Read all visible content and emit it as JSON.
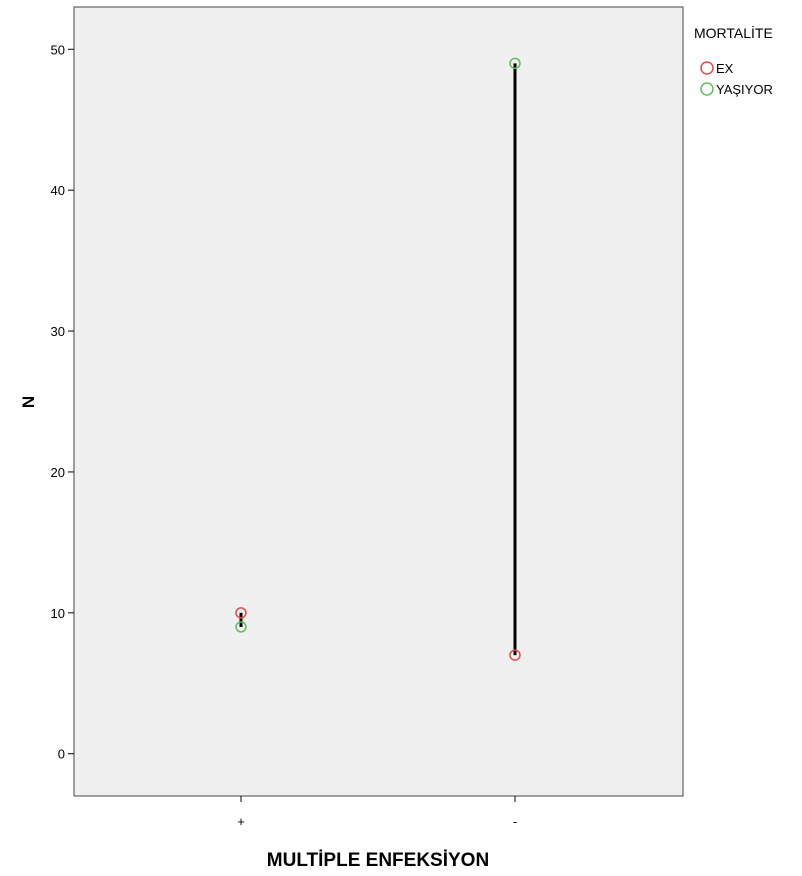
{
  "chart_data": {
    "type": "scatter",
    "xlabel": "MULTİPLE ENFEKSİYON",
    "ylabel": "N",
    "categories": [
      "+",
      "-"
    ],
    "ylim": [
      -3,
      53
    ],
    "yticks": [
      0,
      10,
      20,
      30,
      40,
      50
    ],
    "grid": false,
    "legend_title": "MORTALİTE",
    "legend_position": "top-right, outside plot",
    "plot_background": "#f0f0f0",
    "series": [
      {
        "name": "EX",
        "color": "#e8494a",
        "values": [
          10,
          7
        ]
      },
      {
        "name": "YAŞIYOR",
        "color": "#5cbf5c",
        "values": [
          9,
          49
        ]
      }
    ],
    "connector_color": "#000000"
  }
}
